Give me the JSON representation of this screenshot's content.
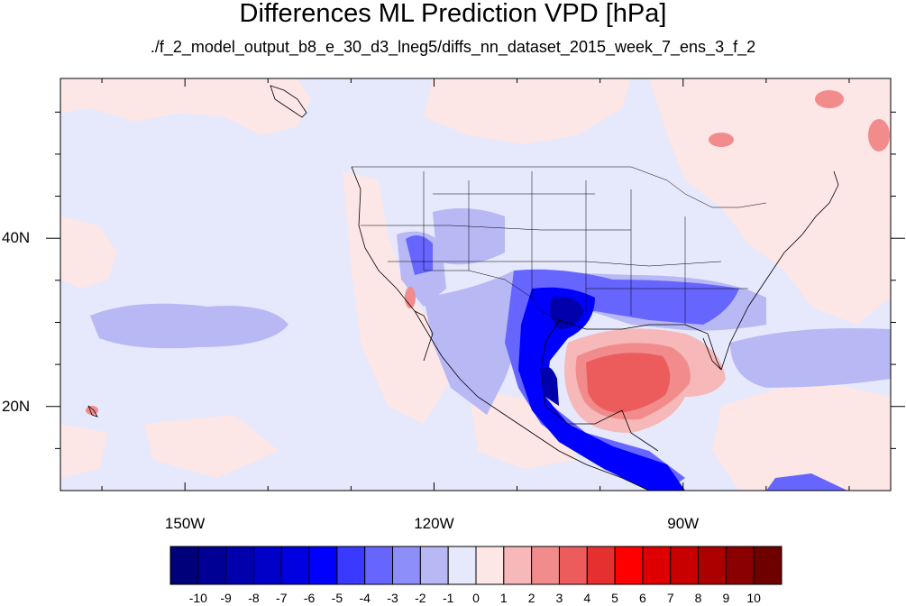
{
  "title": "Differences ML Prediction VPD [hPa]",
  "subtitle": "./f_2_model_output_b8_e_30_d3_lneg5/diffs_nn_dataset_2015_week_7_ens_3_f_2",
  "axes": {
    "lon_range": [
      -165,
      -65
    ],
    "lat_range": [
      10,
      59
    ],
    "x_ticks": [
      {
        "label": "150W",
        "lon": -150
      },
      {
        "label": "120W",
        "lon": -120
      },
      {
        "label": "90W",
        "lon": -90
      }
    ],
    "y_ticks": [
      {
        "label": "40N",
        "lat": 40
      },
      {
        "label": "20N",
        "lat": 20
      }
    ]
  },
  "colorbar": {
    "labels": [
      "-10",
      "-9",
      "-8",
      "-7",
      "-6",
      "-5",
      "-4",
      "-3",
      "-2",
      "-1",
      "0",
      "1",
      "2",
      "3",
      "4",
      "5",
      "6",
      "7",
      "8",
      "9",
      "10"
    ],
    "colors": [
      "#00007a",
      "#000094",
      "#0000ad",
      "#0000c8",
      "#0000e0",
      "#0000ff",
      "#3a3aff",
      "#6666ff",
      "#8e8efa",
      "#b8b8f5",
      "#e6e8fb",
      "#fde6e6",
      "#f6b8b8",
      "#f28c8c",
      "#ec5c5c",
      "#e63030",
      "#ff0000",
      "#de0000",
      "#c80000",
      "#ac0000",
      "#8a0000",
      "#6e0000"
    ]
  },
  "colors": {
    "background_field": "#e6e8fb",
    "light_positive": "#fde6e6",
    "light_negative": "#b8b8f5"
  }
}
